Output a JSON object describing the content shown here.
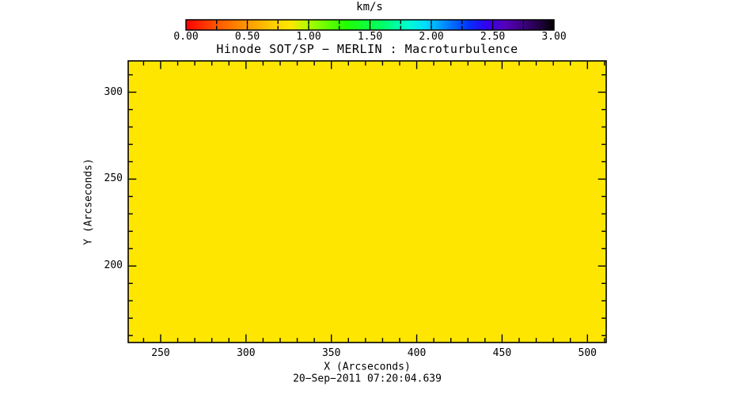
{
  "title": "Hinode SOT/SP − MERLIN : Macroturbulence",
  "footer": {
    "timestamp": "20−Sep−2011 07:20:04.639"
  },
  "colorbar": {
    "label": "km/s",
    "min": 0,
    "max": 3,
    "tick_labels": [
      "0.00",
      "0.50",
      "1.00",
      "1.50",
      "2.00",
      "2.50",
      "3.00"
    ],
    "major_ticks": [
      0,
      0.5,
      1,
      1.5,
      2,
      2.5,
      3
    ],
    "minor_tick_step": 0.25,
    "gradient_stops": [
      [
        0.0,
        "#ff0000"
      ],
      [
        0.25,
        "#ff5500"
      ],
      [
        0.5,
        "#ff9900"
      ],
      [
        0.7,
        "#ffcc00"
      ],
      [
        0.85,
        "#ffe600"
      ],
      [
        1.0,
        "#aaff00"
      ],
      [
        1.3,
        "#22ff00"
      ],
      [
        1.6,
        "#00ff66"
      ],
      [
        1.8,
        "#00ffcc"
      ],
      [
        1.95,
        "#00ddff"
      ],
      [
        2.15,
        "#0077ff"
      ],
      [
        2.3,
        "#0033ff"
      ],
      [
        2.45,
        "#3300ee"
      ],
      [
        2.6,
        "#5500bb"
      ],
      [
        2.75,
        "#3d0080"
      ],
      [
        2.9,
        "#1e0038"
      ],
      [
        3.0,
        "#000000"
      ]
    ]
  },
  "axes": {
    "x": {
      "label": "X (Arcseconds)",
      "range": [
        231,
        511
      ],
      "major_ticks": [
        250,
        300,
        350,
        400,
        450,
        500
      ],
      "major_tick_labels": [
        "250",
        "300",
        "350",
        "400",
        "450",
        "500"
      ],
      "minor_tick_step": 10
    },
    "y": {
      "label": "Y (Arcseconds)",
      "range": [
        156,
        318
      ],
      "major_ticks": [
        200,
        250,
        300
      ],
      "major_tick_labels": [
        "200",
        "250",
        "300"
      ],
      "minor_tick_step": 10
    }
  },
  "colors": {
    "map_fill": "#ffe600",
    "frame": "#000000",
    "background": "#ffffff",
    "text": "#000000"
  },
  "chart_data": {
    "type": "heatmap",
    "title": "Hinode SOT/SP − MERLIN : Macroturbulence",
    "xlabel": "X (Arcseconds)",
    "ylabel": "Y (Arcseconds)",
    "x_range": [
      231,
      511
    ],
    "y_range": [
      156,
      318
    ],
    "x_major_ticks": [
      250,
      300,
      350,
      400,
      450,
      500
    ],
    "y_major_ticks": [
      200,
      250,
      300
    ],
    "minor_tick_step": 10,
    "colorbar": {
      "label": "km/s",
      "min": 0,
      "max": 3,
      "major_ticks": [
        0,
        0.5,
        1,
        1.5,
        2,
        2.5,
        3
      ],
      "minor_tick_step": 0.25,
      "position": "top"
    },
    "values": "uniform",
    "uniform_value_estimate_km_s": 0.85,
    "map_fill_color": "#ffe600",
    "grid": false,
    "annotation_below_xlabel": "20−Sep−2011 07:20:04.639"
  }
}
